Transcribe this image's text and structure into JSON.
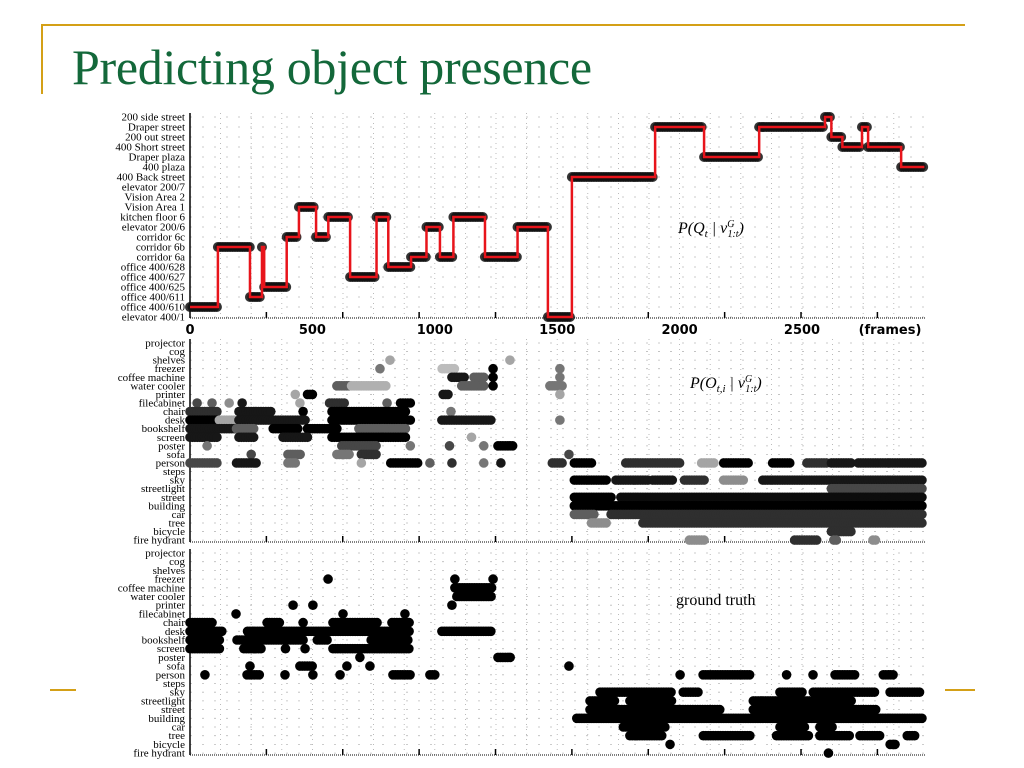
{
  "slide": {
    "title": "Predicting object presence",
    "accent_color": "#d4a017",
    "title_color": "#13683a"
  },
  "chart_data": [
    {
      "type": "line",
      "panel": "location",
      "annotation": {
        "a": "P(Q",
        "b": "t",
        "c": " | v",
        "d": "G",
        "e": "1:t",
        "f": ")"
      },
      "xlabel": "(frames)",
      "x_ticks": [
        0,
        500,
        1000,
        1500,
        2000,
        2500
      ],
      "xlim": [
        0,
        3000
      ],
      "y_categories": [
        "elevator 400/1",
        "office 400/610",
        "office 400/611",
        "office 400/625",
        "office 400/627",
        "office 400/628",
        "corridor 6a",
        "corridor 6b",
        "corridor 6c",
        "elevator 200/6",
        "kitchen floor 6",
        "Vision Area 1",
        "Vision Area 2",
        "elevator 200/7",
        "400 Back street",
        "400 plaza",
        "Draper plaza",
        "400 Short street",
        "200 out street",
        "Draper street",
        "200 side street"
      ],
      "line_color": "#e8141b",
      "series": [
        {
          "steps": [
            [
              0,
              1
            ],
            [
              114,
              7
            ],
            [
              245,
              2
            ],
            [
              294,
              7
            ],
            [
              303,
              3
            ],
            [
              395,
              8
            ],
            [
              445,
              11
            ],
            [
              515,
              8
            ],
            [
              565,
              10
            ],
            [
              654,
              4
            ],
            [
              762,
              10
            ],
            [
              810,
              5
            ],
            [
              903,
              6
            ],
            [
              966,
              9
            ],
            [
              1021,
              6
            ],
            [
              1076,
              10
            ],
            [
              1205,
              6
            ],
            [
              1338,
              9
            ],
            [
              1462,
              0
            ],
            [
              1560,
              14
            ],
            [
              1900,
              19
            ],
            [
              2100,
              16
            ],
            [
              2325,
              19
            ],
            [
              2594,
              20
            ],
            [
              2620,
              18
            ],
            [
              2665,
              17
            ],
            [
              2745,
              19
            ],
            [
              2770,
              17
            ],
            [
              2905,
              15
            ],
            [
              3000,
              15
            ]
          ]
        }
      ]
    },
    {
      "type": "heatmap",
      "panel": "predicted objects",
      "annotation": {
        "a": "P(O",
        "b": "t,i",
        "c": " | v",
        "d": "G",
        "e": "1:t",
        "f": ")"
      },
      "xlim": [
        0,
        3000
      ],
      "y_categories": [
        "projector",
        "cog",
        "shelves",
        "freezer",
        "coffee machine",
        "water cooler",
        "printer",
        "filecabinet",
        "chair",
        "desk",
        "bookshelf",
        "screen",
        "poster",
        "sofa",
        "person",
        "steps",
        "sky",
        "streetlight",
        "street",
        "building",
        "car",
        "tree",
        "bicycle",
        "fire hydrant"
      ],
      "segments": {
        "shelves": [
          [
            817,
            817,
            0.3
          ],
          [
            1307,
            1307,
            0.3
          ]
        ],
        "freezer": [
          [
            776,
            776,
            0.5
          ],
          [
            1030,
            1080,
            0.2
          ],
          [
            1238,
            1238,
            1.0
          ],
          [
            1511,
            1511,
            0.5
          ]
        ],
        "coffee machine": [
          [
            1070,
            1125,
            0.9
          ],
          [
            1160,
            1200,
            0.6
          ],
          [
            1238,
            1238,
            1.0
          ],
          [
            1511,
            1511,
            0.5
          ]
        ],
        "water cooler": [
          [
            600,
            650,
            0.6
          ],
          [
            660,
            800,
            0.25
          ],
          [
            1110,
            1200,
            0.6
          ],
          [
            1238,
            1238,
            1.0
          ],
          [
            1470,
            1520,
            0.5
          ]
        ],
        "printer": [
          [
            430,
            430,
            0.3
          ],
          [
            480,
            500,
            1.0
          ],
          [
            1034,
            1060,
            0.9
          ],
          [
            1511,
            1511,
            0.3
          ]
        ],
        "filecabinet": [
          [
            29,
            29,
            0.7
          ],
          [
            90,
            90,
            0.6
          ],
          [
            160,
            160,
            0.4
          ],
          [
            213,
            213,
            0.9
          ],
          [
            449,
            449,
            0.3
          ],
          [
            570,
            630,
            0.8
          ],
          [
            805,
            805,
            0.6
          ],
          [
            860,
            900,
            1.0
          ]
        ],
        "chair": [
          [
            0,
            110,
            0.8
          ],
          [
            200,
            330,
            0.9
          ],
          [
            462,
            462,
            1.0
          ],
          [
            580,
            880,
            1.0
          ],
          [
            1066,
            1066,
            0.5
          ]
        ],
        "desk": [
          [
            0,
            110,
            1.0
          ],
          [
            120,
            180,
            0.3
          ],
          [
            200,
            470,
            0.9
          ],
          [
            580,
            900,
            1.0
          ],
          [
            1029,
            1233,
            0.9
          ],
          [
            1511,
            1511,
            0.5
          ]
        ],
        "bookshelf": [
          [
            0,
            190,
            0.9
          ],
          [
            190,
            260,
            0.6
          ],
          [
            340,
            440,
            1.0
          ],
          [
            480,
            600,
            1.0
          ],
          [
            690,
            880,
            0.6
          ]
        ],
        "screen": [
          [
            0,
            110,
            0.9
          ],
          [
            200,
            260,
            0.9
          ],
          [
            380,
            480,
            0.9
          ],
          [
            580,
            880,
            1.0
          ],
          [
            1150,
            1150,
            0.3
          ]
        ],
        "poster": [
          [
            70,
            70,
            0.5
          ],
          [
            620,
            760,
            0.7
          ],
          [
            900,
            900,
            0.5
          ],
          [
            1060,
            1060,
            0.7
          ],
          [
            1200,
            1200,
            0.5
          ],
          [
            1258,
            1320,
            1.0
          ]
        ],
        "sofa": [
          [
            250,
            250,
            0.7
          ],
          [
            400,
            450,
            0.6
          ],
          [
            600,
            650,
            0.5
          ],
          [
            700,
            760,
            0.8
          ],
          [
            1548,
            1548,
            0.7
          ]
        ],
        "person": [
          [
            0,
            110,
            0.7
          ],
          [
            190,
            270,
            0.9
          ],
          [
            400,
            430,
            0.5
          ],
          [
            700,
            700,
            0.3
          ],
          [
            820,
            930,
            1.0
          ],
          [
            980,
            980,
            0.6
          ],
          [
            1070,
            1070,
            0.8
          ],
          [
            1200,
            1200,
            0.5
          ],
          [
            1270,
            1270,
            0.9
          ],
          [
            1480,
            1520,
            0.8
          ],
          [
            1570,
            1640,
            1.0
          ],
          [
            1780,
            2000,
            0.8
          ],
          [
            2090,
            2140,
            0.3
          ],
          [
            2180,
            2280,
            1.0
          ],
          [
            2380,
            2450,
            1.0
          ],
          [
            2520,
            2600,
            0.8
          ],
          [
            2620,
            2700,
            0.9
          ],
          [
            2730,
            2990,
            0.9
          ]
        ],
        "sky": [
          [
            1570,
            1700,
            1.0
          ],
          [
            1740,
            1870,
            0.9
          ],
          [
            1890,
            1970,
            0.9
          ],
          [
            2020,
            2100,
            0.8
          ],
          [
            2180,
            2260,
            0.4
          ],
          [
            2340,
            2990,
            0.9
          ]
        ],
        "streetlight": [
          [
            2620,
            2990,
            0.7
          ]
        ],
        "street": [
          [
            1570,
            1720,
            1.0
          ],
          [
            1760,
            2990,
            0.95
          ]
        ],
        "building": [
          [
            1570,
            2990,
            1.0
          ]
        ],
        "car": [
          [
            1570,
            1650,
            0.6
          ],
          [
            1720,
            2990,
            0.8
          ]
        ],
        "tree": [
          [
            1640,
            1700,
            0.4
          ],
          [
            1850,
            2990,
            0.8
          ]
        ],
        "bicycle": [
          [
            2620,
            2700,
            0.8
          ]
        ],
        "fire hydrant": [
          [
            2040,
            2100,
            0.4
          ],
          [
            2470,
            2560,
            0.8
          ],
          [
            2630,
            2640,
            0.6
          ],
          [
            2790,
            2800,
            0.4
          ]
        ]
      }
    },
    {
      "type": "heatmap",
      "panel": "ground truth",
      "annotation": {
        "a": "ground truth"
      },
      "xlim": [
        0,
        3000
      ],
      "y_categories": [
        "projector",
        "cog",
        "shelves",
        "freezer",
        "coffee machine",
        "water cooler",
        "printer",
        "filecabinet",
        "chair",
        "desk",
        "bookshelf",
        "screen",
        "poster",
        "sofa",
        "person",
        "steps",
        "sky",
        "streetlight",
        "street",
        "building",
        "car",
        "tree",
        "bicycle",
        "fire hydrant"
      ],
      "segments": {
        "freezer": [
          [
            564,
            564,
            1
          ],
          [
            1082,
            1082,
            1
          ],
          [
            1238,
            1238,
            1
          ]
        ],
        "coffee machine": [
          [
            1082,
            1238,
            1
          ]
        ],
        "water cooler": [
          [
            1090,
            1238,
            1
          ]
        ],
        "printer": [
          [
            421,
            421,
            1
          ],
          [
            502,
            502,
            1
          ],
          [
            1070,
            1070,
            1
          ]
        ],
        "filecabinet": [
          [
            188,
            188,
            1
          ],
          [
            625,
            625,
            1
          ],
          [
            878,
            878,
            1
          ]
        ],
        "chair": [
          [
            0,
            94,
            1
          ],
          [
            315,
            368,
            1
          ],
          [
            462,
            462,
            1
          ],
          [
            584,
            764,
            1
          ],
          [
            825,
            899,
            1
          ]
        ],
        "desk": [
          [
            0,
            135,
            1
          ],
          [
            235,
            899,
            1
          ],
          [
            1029,
            1233,
            1
          ]
        ],
        "bookshelf": [
          [
            0,
            120,
            1
          ],
          [
            192,
            470,
            1
          ],
          [
            520,
            560,
            1
          ],
          [
            740,
            899,
            1
          ]
        ],
        "screen": [
          [
            0,
            120,
            1
          ],
          [
            220,
            290,
            1
          ],
          [
            390,
            390,
            1
          ],
          [
            470,
            470,
            1
          ],
          [
            584,
            899,
            1
          ]
        ],
        "poster": [
          [
            694,
            694,
            1
          ],
          [
            1258,
            1315,
            1
          ]
        ],
        "sofa": [
          [
            245,
            245,
            1
          ],
          [
            449,
            502,
            1
          ],
          [
            641,
            641,
            1
          ],
          [
            735,
            735,
            1
          ],
          [
            1548,
            1548,
            1
          ]
        ],
        "person": [
          [
            61,
            61,
            1
          ],
          [
            233,
            286,
            1
          ],
          [
            388,
            388,
            1
          ],
          [
            502,
            502,
            1
          ],
          [
            613,
            613,
            1
          ],
          [
            829,
            899,
            1
          ],
          [
            980,
            1009,
            1
          ],
          [
            2002,
            2002,
            1
          ],
          [
            2096,
            2288,
            1
          ],
          [
            2437,
            2437,
            1
          ],
          [
            2545,
            2545,
            1
          ],
          [
            2635,
            2723,
            1
          ],
          [
            2832,
            2872,
            1
          ]
        ],
        "sky": [
          [
            1675,
            1973,
            1
          ],
          [
            2015,
            2083,
            1
          ],
          [
            2410,
            2505,
            1
          ],
          [
            2546,
            2805,
            1
          ],
          [
            2860,
            2982,
            1
          ]
        ],
        "streetlight": [
          [
            1634,
            1743,
            1
          ],
          [
            1797,
            1974,
            1
          ],
          [
            2301,
            2710,
            1
          ]
        ],
        "street": [
          [
            1634,
            2165,
            1
          ],
          [
            2301,
            2805,
            1
          ]
        ],
        "building": [
          [
            1580,
            2995,
            1
          ]
        ],
        "car": [
          [
            1770,
            1947,
            1
          ],
          [
            2410,
            2519,
            1
          ],
          [
            2573,
            2628,
            1
          ]
        ],
        "tree": [
          [
            1797,
            1934,
            1
          ],
          [
            2097,
            2288,
            1
          ],
          [
            2396,
            2533,
            1
          ],
          [
            2573,
            2696,
            1
          ],
          [
            2737,
            2819,
            1
          ],
          [
            2930,
            2968,
            1
          ]
        ],
        "bicycle": [
          [
            1961,
            1961,
            1
          ],
          [
            2860,
            2887,
            1
          ]
        ],
        "fire hydrant": [
          [
            2608,
            2608,
            1
          ]
        ]
      }
    }
  ]
}
